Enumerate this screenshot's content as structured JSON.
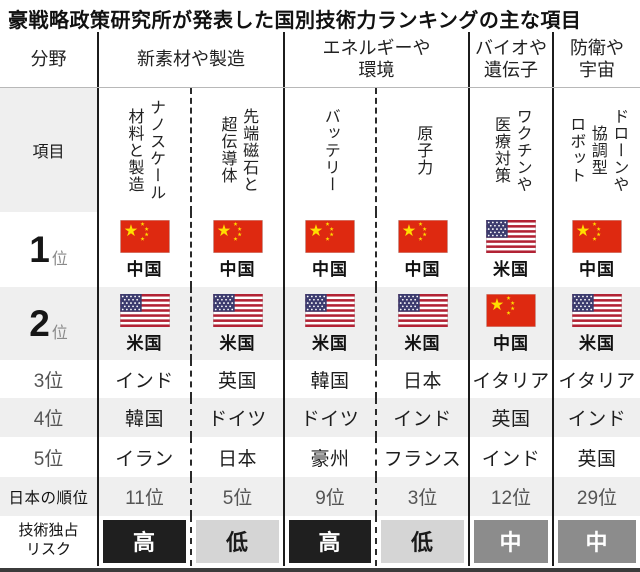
{
  "title": "豪戦略政策研究所が発表した国別技術力ランキングの主な項目",
  "header": {
    "field_label": "分野",
    "groups": [
      "新素材や製造",
      "エネルギーや\n環境",
      "バイオや\n遺伝子",
      "防衛や\n宇宙"
    ],
    "item_label": "項目",
    "items": [
      "ナノスケール\n材料と製造",
      "先端磁石と\n超伝導体",
      "バッテリー",
      "原子力",
      "ワクチンや\n医療対策",
      "ドローンや\n協調型\nロボット"
    ]
  },
  "ranks": {
    "rank1": {
      "num": "1",
      "suffix": "位",
      "flags": [
        "cn",
        "cn",
        "cn",
        "cn",
        "us",
        "cn"
      ],
      "countries": [
        "中国",
        "中国",
        "中国",
        "中国",
        "米国",
        "中国"
      ]
    },
    "rank2": {
      "num": "2",
      "suffix": "位",
      "flags": [
        "us",
        "us",
        "us",
        "us",
        "cn",
        "us"
      ],
      "countries": [
        "米国",
        "米国",
        "米国",
        "米国",
        "中国",
        "米国"
      ]
    },
    "rank3": {
      "label": "3位",
      "countries": [
        "インド",
        "英国",
        "韓国",
        "日本",
        "イタリア",
        "イタリア"
      ]
    },
    "rank4": {
      "label": "4位",
      "countries": [
        "韓国",
        "ドイツ",
        "ドイツ",
        "インド",
        "英国",
        "インド"
      ]
    },
    "rank5": {
      "label": "5位",
      "countries": [
        "イラン",
        "日本",
        "豪州",
        "フランス",
        "インド",
        "英国"
      ]
    }
  },
  "japan_rank": {
    "label": "日本の順位",
    "values": [
      "11位",
      "5位",
      "9位",
      "3位",
      "12位",
      "29位"
    ]
  },
  "risk": {
    "label": "技術独占\nリスク",
    "values": [
      {
        "text": "高",
        "level": "high"
      },
      {
        "text": "低",
        "level": "low"
      },
      {
        "text": "高",
        "level": "high"
      },
      {
        "text": "低",
        "level": "low"
      },
      {
        "text": "中",
        "level": "mid"
      },
      {
        "text": "中",
        "level": "mid"
      }
    ]
  },
  "colors": {
    "china_flag_red": "#de2910",
    "flag_star_yellow": "#ffde00",
    "us_flag_blue": "#3c3b6e",
    "us_flag_red": "#b22234",
    "risk_high_bg": "#1f1f1f",
    "risk_low_bg": "#d5d5d5",
    "risk_mid_bg": "#8c8c8c",
    "alt_row_bg": "#efefef",
    "bottom_bar": "#3b3b3b"
  },
  "chart_data": {
    "type": "table",
    "title": "豪戦略政策研究所が発表した国別技術力ランキングの主な項目",
    "column_groups": [
      {
        "label": "新素材や製造",
        "columns": [
          "ナノスケール材料と製造",
          "先端磁石と超伝導体"
        ]
      },
      {
        "label": "エネルギーや環境",
        "columns": [
          "バッテリー",
          "原子力"
        ]
      },
      {
        "label": "バイオや遺伝子",
        "columns": [
          "ワクチンや医療対策"
        ]
      },
      {
        "label": "防衛や宇宙",
        "columns": [
          "ドローンや協調型ロボット"
        ]
      }
    ],
    "rows": [
      {
        "label": "1位",
        "values": [
          "中国",
          "中国",
          "中国",
          "中国",
          "米国",
          "中国"
        ]
      },
      {
        "label": "2位",
        "values": [
          "米国",
          "米国",
          "米国",
          "米国",
          "中国",
          "米国"
        ]
      },
      {
        "label": "3位",
        "values": [
          "インド",
          "英国",
          "韓国",
          "日本",
          "イタリア",
          "イタリア"
        ]
      },
      {
        "label": "4位",
        "values": [
          "韓国",
          "ドイツ",
          "ドイツ",
          "インド",
          "英国",
          "インド"
        ]
      },
      {
        "label": "5位",
        "values": [
          "イラン",
          "日本",
          "豪州",
          "フランス",
          "インド",
          "英国"
        ]
      },
      {
        "label": "日本の順位",
        "values": [
          "11位",
          "5位",
          "9位",
          "3位",
          "12位",
          "29位"
        ]
      },
      {
        "label": "技術独占リスク",
        "values": [
          "高",
          "低",
          "高",
          "低",
          "中",
          "中"
        ]
      }
    ]
  }
}
